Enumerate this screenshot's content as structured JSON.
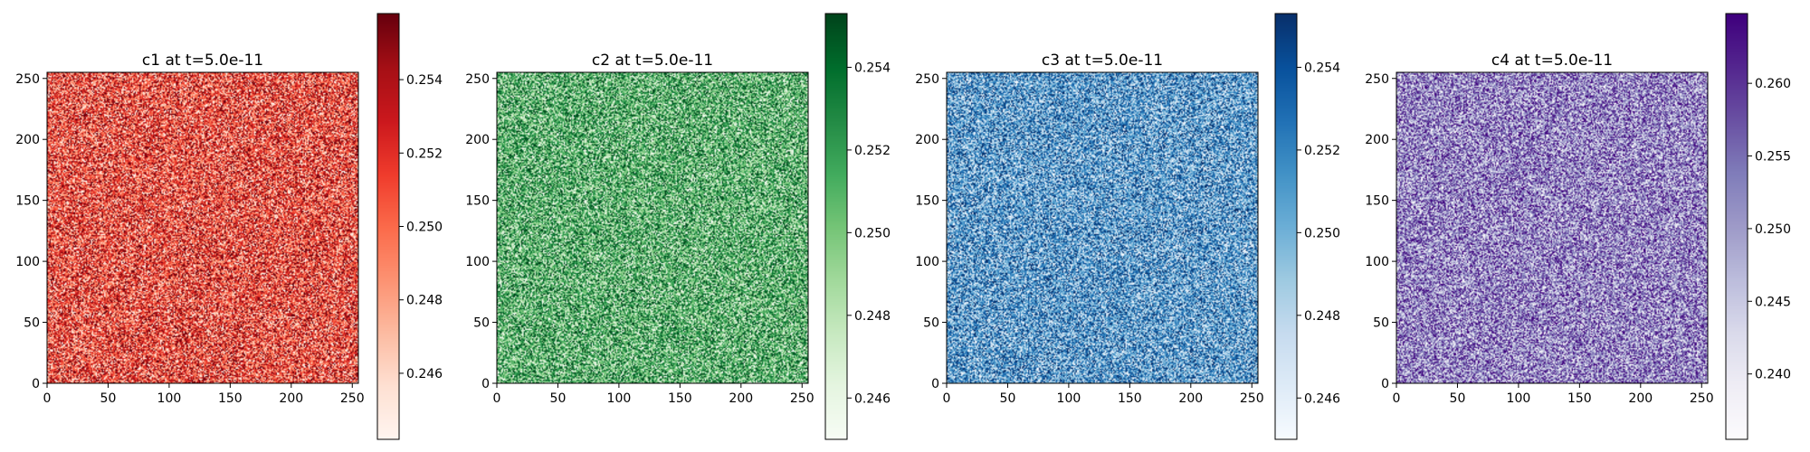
{
  "chart_data": [
    {
      "type": "heatmap",
      "title": "c1 at t=5.0e-11",
      "colormap": "Reds",
      "colormap_stops": [
        "#fff5f0",
        "#fee0d2",
        "#fcbba1",
        "#fc9272",
        "#fb6a4a",
        "#ef3b2c",
        "#cb181d",
        "#a50f15",
        "#67000d"
      ],
      "grid_size": [
        256,
        256
      ],
      "xlim": [
        0,
        255
      ],
      "ylim": [
        0,
        255
      ],
      "xticks": [
        0,
        50,
        100,
        150,
        200,
        250
      ],
      "yticks": [
        0,
        50,
        100,
        150,
        200,
        250
      ],
      "value_range": [
        0.2442,
        0.2558
      ],
      "colorbar_ticks": [
        0.246,
        0.248,
        0.25,
        0.252,
        0.254
      ],
      "colorbar_tick_labels": [
        "0.246",
        "0.248",
        "0.250",
        "0.252",
        "0.254"
      ]
    },
    {
      "type": "heatmap",
      "title": "c2 at t=5.0e-11",
      "colormap": "Greens",
      "colormap_stops": [
        "#f7fcf5",
        "#e5f5e0",
        "#c7e9c0",
        "#a1d99b",
        "#74c476",
        "#41ab5d",
        "#238b45",
        "#006d2c",
        "#00441b"
      ],
      "grid_size": [
        256,
        256
      ],
      "xlim": [
        0,
        255
      ],
      "ylim": [
        0,
        255
      ],
      "xticks": [
        0,
        50,
        100,
        150,
        200,
        250
      ],
      "yticks": [
        0,
        50,
        100,
        150,
        200,
        250
      ],
      "value_range": [
        0.245,
        0.2553
      ],
      "colorbar_ticks": [
        0.246,
        0.248,
        0.25,
        0.252,
        0.254
      ],
      "colorbar_tick_labels": [
        "0.246",
        "0.248",
        "0.250",
        "0.252",
        "0.254"
      ]
    },
    {
      "type": "heatmap",
      "title": "c3 at t=5.0e-11",
      "colormap": "Blues",
      "colormap_stops": [
        "#f7fbff",
        "#deebf7",
        "#c6dbef",
        "#9ecae1",
        "#6baed6",
        "#4292c6",
        "#2171b5",
        "#08519c",
        "#08306b"
      ],
      "grid_size": [
        256,
        256
      ],
      "xlim": [
        0,
        255
      ],
      "ylim": [
        0,
        255
      ],
      "xticks": [
        0,
        50,
        100,
        150,
        200,
        250
      ],
      "yticks": [
        0,
        50,
        100,
        150,
        200,
        250
      ],
      "value_range": [
        0.245,
        0.2553
      ],
      "colorbar_ticks": [
        0.246,
        0.248,
        0.25,
        0.252,
        0.254
      ],
      "colorbar_tick_labels": [
        "0.246",
        "0.248",
        "0.250",
        "0.252",
        "0.254"
      ]
    },
    {
      "type": "heatmap",
      "title": "c4 at t=5.0e-11",
      "colormap": "Purples",
      "colormap_stops": [
        "#fcfbfd",
        "#efedf5",
        "#dadaeb",
        "#bcbddc",
        "#9e9ac8",
        "#807dba",
        "#6a51a3",
        "#54278f",
        "#3f007d"
      ],
      "grid_size": [
        256,
        256
      ],
      "xlim": [
        0,
        255
      ],
      "ylim": [
        0,
        255
      ],
      "xticks": [
        0,
        50,
        100,
        150,
        200,
        250
      ],
      "yticks": [
        0,
        50,
        100,
        150,
        200,
        250
      ],
      "value_range": [
        0.2355,
        0.2648
      ],
      "colorbar_ticks": [
        0.24,
        0.245,
        0.25,
        0.255,
        0.26
      ],
      "colorbar_tick_labels": [
        "0.240",
        "0.245",
        "0.250",
        "0.255",
        "0.260"
      ]
    }
  ]
}
